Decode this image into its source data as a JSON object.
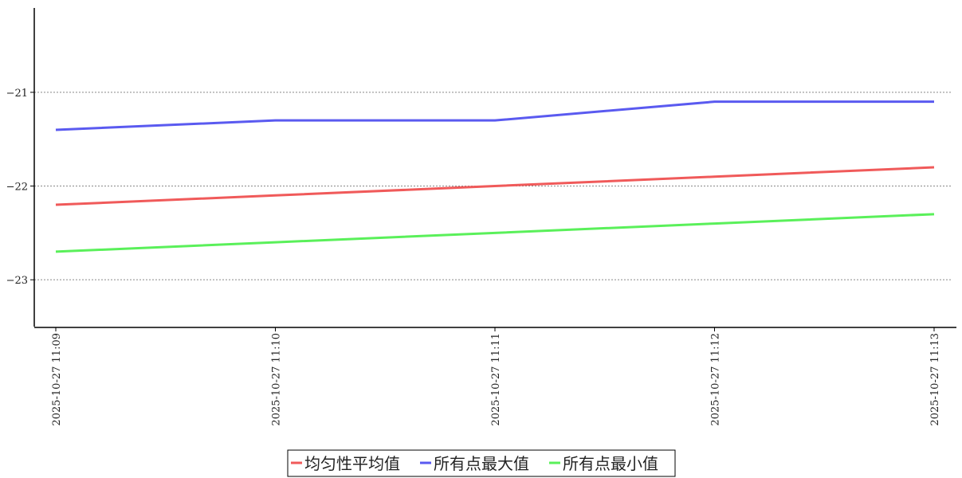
{
  "chart_data": {
    "type": "line",
    "title": "",
    "xlabel": "",
    "ylabel": "",
    "categories": [
      "2025-10-27  11:09",
      "2025-10-27  11:10",
      "2025-10-27  11:11",
      "2025-10-27  11:12",
      "2025-10-27  11:13"
    ],
    "ylim": [
      -23.5,
      -20.1
    ],
    "yticks": [
      -21,
      -22,
      -23
    ],
    "ytick_labels": [
      "−21",
      "−22",
      "−23"
    ],
    "grid": "horizontal dotted",
    "legend_position": "bottom-center",
    "series": [
      {
        "name": "均匀性平均值",
        "color": "#f05a5a",
        "values": [
          -22.2,
          -22.1,
          -22.0,
          -21.9,
          -21.8
        ]
      },
      {
        "name": "所有点最大值",
        "color": "#5a5af0",
        "values": [
          -21.4,
          -21.3,
          -21.3,
          -21.1,
          -21.1
        ]
      },
      {
        "name": "所有点最小值",
        "color": "#5af05a",
        "values": [
          -22.7,
          -22.6,
          -22.5,
          -22.4,
          -22.3
        ]
      }
    ]
  }
}
